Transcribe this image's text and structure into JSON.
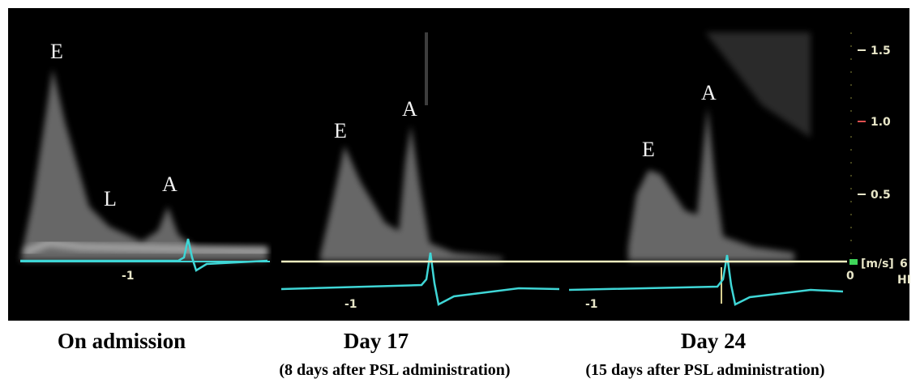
{
  "panels": [
    {
      "wave_labels": [
        "E",
        "L",
        "A"
      ],
      "scale_label": "-1",
      "caption": "On admission"
    },
    {
      "wave_labels": [
        "E",
        "A"
      ],
      "scale_label": "-1",
      "caption": "Day 17",
      "subcaption": "(8 days after PSL administration)"
    },
    {
      "wave_labels": [
        "E",
        "A"
      ],
      "scale_label": "-1",
      "caption": "Day 24",
      "subcaption": "(15 days after PSL administration)"
    }
  ],
  "velocity_scale": {
    "ticks": [
      "1.5",
      "1.0",
      "0.5",
      "0"
    ],
    "unit": "[m/s]",
    "suffix": "6",
    "mode": "HI"
  }
}
